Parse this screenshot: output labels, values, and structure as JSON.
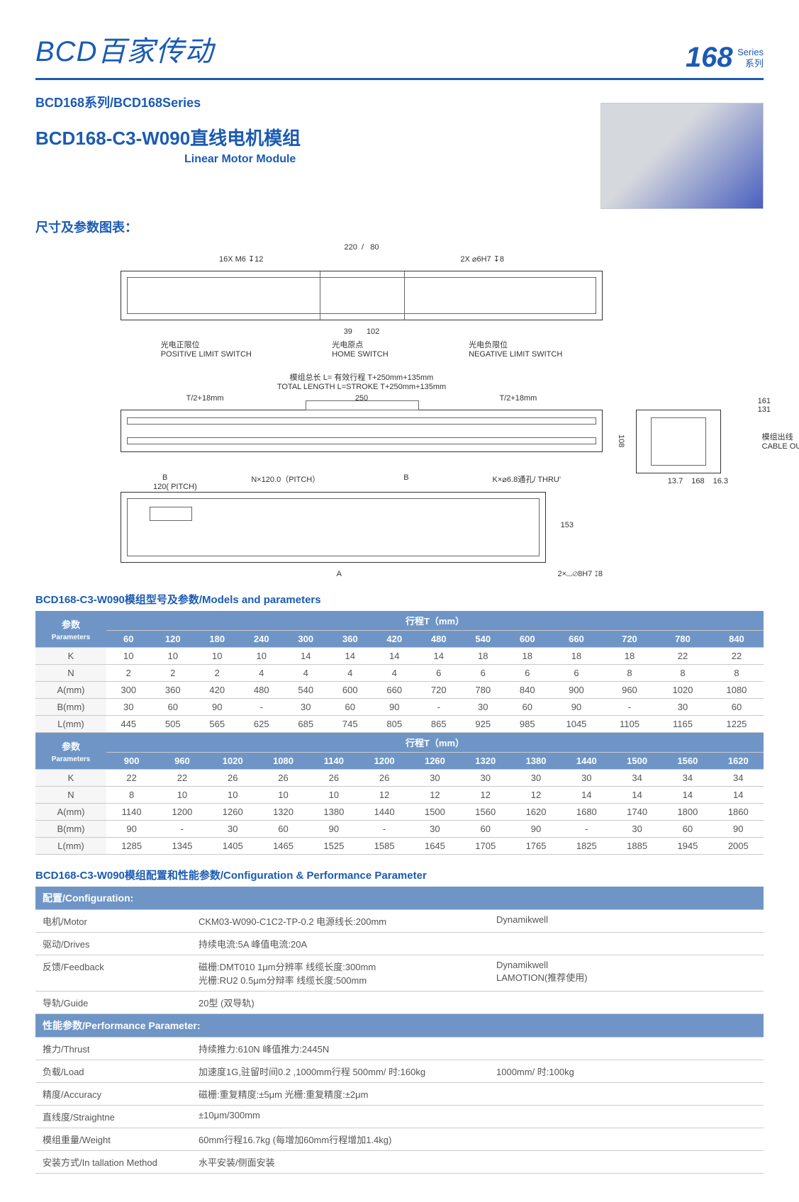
{
  "header": {
    "brand": "BCD百家传动",
    "series_num": "168",
    "series_en": "Series",
    "series_zh": "系列"
  },
  "subhead": "BCD168系列/BCD168Series",
  "product": {
    "title": "BCD168-C3-W090直线电机模组",
    "subtitle": "Linear Motor Module"
  },
  "section_dim_label": "尺寸及参数图表：",
  "diagram": {
    "top_dim1": "220",
    "top_dim2": "80",
    "top_left": "16X M6 ↧12",
    "top_right": "2X ⌀6H7 ↧8",
    "mid_dim1": "39",
    "mid_dim2": "102",
    "pos_switch_zh": "光电正限位",
    "pos_switch_en": "POSITIVE LIMIT SWITCH",
    "home_zh": "光电原点",
    "home_en": "HOME SWITCH",
    "neg_switch_zh": "光电负限位",
    "neg_switch_en": "NEGATIVE LIMIT SWITCH",
    "total_zh": "模组总长  L= 有效行程  T+250mm+135mm",
    "total_en": "TOTAL LENGTH  L=STROKE  T+250mm+135mm",
    "t_half": "T/2+18mm",
    "mid_250": "250",
    "side_161": "161",
    "side_131": "131",
    "side_108": "108",
    "side_137": "13.7",
    "side_168": "168",
    "side_163": "16.3",
    "cable_zh": "模组出线",
    "cable_en": "CABLE OUT",
    "pitch_label": "N×120.0（PITCH）",
    "pitch_120": "120( PITCH)",
    "hole_k": "K×⌀6.8通孔/  THRU'",
    "dim_153": "153",
    "bottom_hole": "2×⌴⌀8H7 ↧8",
    "b_label": "B",
    "a_label": "A"
  },
  "param_table": {
    "title": "BCD168-C3-W090模组型号及参数/Models and parameters",
    "param_label": "参数",
    "param_label_en": "Parameters",
    "stroke_header": "行程T（mm）",
    "block1": {
      "cols": [
        "60",
        "120",
        "180",
        "240",
        "300",
        "360",
        "420",
        "480",
        "540",
        "600",
        "660",
        "720",
        "780",
        "840"
      ],
      "rows": [
        {
          "label": "K",
          "vals": [
            "10",
            "10",
            "10",
            "10",
            "14",
            "14",
            "14",
            "14",
            "18",
            "18",
            "18",
            "18",
            "22",
            "22"
          ]
        },
        {
          "label": "N",
          "vals": [
            "2",
            "2",
            "2",
            "4",
            "4",
            "4",
            "4",
            "6",
            "6",
            "6",
            "6",
            "8",
            "8",
            "8"
          ]
        },
        {
          "label": "A(mm)",
          "vals": [
            "300",
            "360",
            "420",
            "480",
            "540",
            "600",
            "660",
            "720",
            "780",
            "840",
            "900",
            "960",
            "1020",
            "1080"
          ]
        },
        {
          "label": "B(mm)",
          "vals": [
            "30",
            "60",
            "90",
            "-",
            "30",
            "60",
            "90",
            "-",
            "30",
            "60",
            "90",
            "-",
            "30",
            "60"
          ]
        },
        {
          "label": "L(mm)",
          "vals": [
            "445",
            "505",
            "565",
            "625",
            "685",
            "745",
            "805",
            "865",
            "925",
            "985",
            "1045",
            "1105",
            "1165",
            "1225"
          ]
        }
      ]
    },
    "block2": {
      "cols": [
        "900",
        "960",
        "1020",
        "1080",
        "1140",
        "1200",
        "1260",
        "1320",
        "1380",
        "1440",
        "1500",
        "1560",
        "1620"
      ],
      "rows": [
        {
          "label": "K",
          "vals": [
            "22",
            "22",
            "26",
            "26",
            "26",
            "26",
            "30",
            "30",
            "30",
            "30",
            "34",
            "34",
            "34"
          ]
        },
        {
          "label": "N",
          "vals": [
            "8",
            "10",
            "10",
            "10",
            "10",
            "12",
            "12",
            "12",
            "12",
            "14",
            "14",
            "14",
            "14"
          ]
        },
        {
          "label": "A(mm)",
          "vals": [
            "1140",
            "1200",
            "1260",
            "1320",
            "1380",
            "1440",
            "1500",
            "1560",
            "1620",
            "1680",
            "1740",
            "1800",
            "1860"
          ]
        },
        {
          "label": "B(mm)",
          "vals": [
            "90",
            "-",
            "30",
            "60",
            "90",
            "-",
            "30",
            "60",
            "90",
            "-",
            "30",
            "60",
            "90"
          ]
        },
        {
          "label": "L(mm)",
          "vals": [
            "1285",
            "1345",
            "1405",
            "1465",
            "1525",
            "1585",
            "1645",
            "1705",
            "1765",
            "1825",
            "1885",
            "1945",
            "2005"
          ]
        }
      ]
    }
  },
  "config_table": {
    "title": "BCD168-C3-W090模组配置和性能参数/Configuration & Performance Parameter",
    "section1": "配置/Configuration:",
    "rows1": [
      {
        "label": "电机/Motor",
        "v1": "CKM03-W090-C1C2-TP-0.2    电源线长:200mm",
        "v2": "Dynamikwell"
      },
      {
        "label": "驱动/Drives",
        "v1": "持续电流:5A    峰值电流:20A",
        "v2": ""
      },
      {
        "label": "反馈/Feedback",
        "v1": "磁栅:DMT010    1μm分辨率    线缆长度:300mm\n光栅:RU2       0.5μm分辩率   线缆长度:500mm",
        "v2": "Dynamikwell\nLAMOTION(推荐使用)"
      },
      {
        "label": "导轨/Guide",
        "v1": "20型 (双导轨)",
        "v2": ""
      }
    ],
    "section2": "性能参数/Performance Parameter:",
    "rows2": [
      {
        "label": "推力/Thrust",
        "v1": "持续推力:610N    峰值推力:2445N",
        "v2": ""
      },
      {
        "label": "负载/Load",
        "v1": "加速度1G,驻留时间0.2 ,1000mm行程    500mm/ 时:160kg",
        "v2": "1000mm/ 时:100kg"
      },
      {
        "label": "精度/Accuracy",
        "v1": "磁栅:重复精度:±5μm    光栅:重复精度:±2μm",
        "v2": ""
      },
      {
        "label": "直线度/Straightne",
        "v1": "±10μm/300mm",
        "v2": ""
      },
      {
        "label": "模组重量/Weight",
        "v1": "60mm行程16.7kg (每增加60mm行程增加1.4kg)",
        "v2": ""
      },
      {
        "label": "安装方式/In  tallation Method",
        "v1": "水平安装/侧面安装",
        "v2": ""
      }
    ]
  },
  "colors": {
    "brand_blue": "#1b5bb3",
    "table_header": "#6e95c6",
    "border_gray": "#c9c9c9",
    "text_gray": "#555555"
  }
}
